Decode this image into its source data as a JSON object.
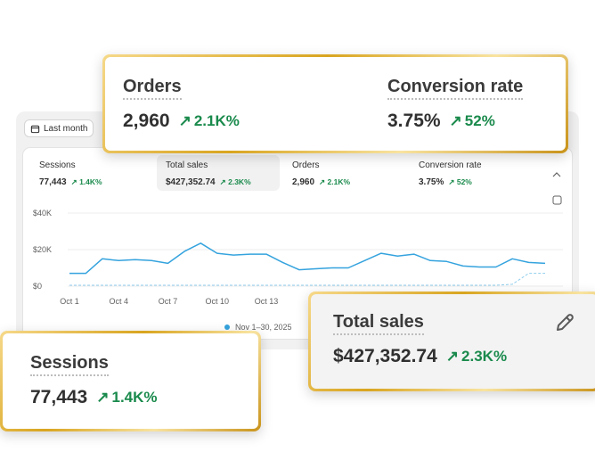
{
  "button": "Last month",
  "metrics": [
    {
      "title": "Sessions",
      "value": "77,443",
      "change": "1.4K%"
    },
    {
      "title": "Total sales",
      "value": "$427,352.74",
      "change": "2.3K%"
    },
    {
      "title": "Orders",
      "value": "2,960",
      "change": "2.1K%"
    },
    {
      "title": "Conversion rate",
      "value": "3.75%",
      "change": "52%"
    }
  ],
  "chart_data": {
    "type": "line",
    "categories": [
      "Oct 1",
      null,
      null,
      "Oct 4",
      null,
      null,
      "Oct 7",
      null,
      null,
      "Oct 10",
      null,
      null,
      "Oct 13",
      null,
      null,
      null,
      null,
      null,
      null,
      null,
      null,
      null,
      null,
      null,
      null,
      null,
      null,
      null,
      null,
      null
    ],
    "series": [
      {
        "name": "Nov 1–30, 2025",
        "color": "#35a3de",
        "style": "solid",
        "values": [
          7000,
          7000,
          15000,
          14000,
          14500,
          14000,
          12500,
          19000,
          23500,
          18000,
          17000,
          17500,
          17500,
          13000,
          9000,
          9500,
          10000,
          10000,
          14000,
          18000,
          16500,
          17500,
          14000,
          13500,
          11000,
          10500,
          10500,
          15000,
          13000,
          12500
        ]
      },
      {
        "color": "#8fcdec",
        "style": "dashed",
        "values": [
          500,
          500,
          500,
          500,
          500,
          500,
          500,
          500,
          500,
          500,
          500,
          500,
          500,
          500,
          500,
          500,
          500,
          500,
          500,
          500,
          500,
          500,
          500,
          500,
          500,
          500,
          500,
          1000,
          7000,
          7000
        ]
      }
    ],
    "ylim": [
      0,
      40000
    ],
    "yticks": [
      {
        "value": 0,
        "label": "$0"
      },
      {
        "value": 20000,
        "label": "$20K"
      },
      {
        "value": 40000,
        "label": "$40K"
      }
    ],
    "grid": true
  }
}
